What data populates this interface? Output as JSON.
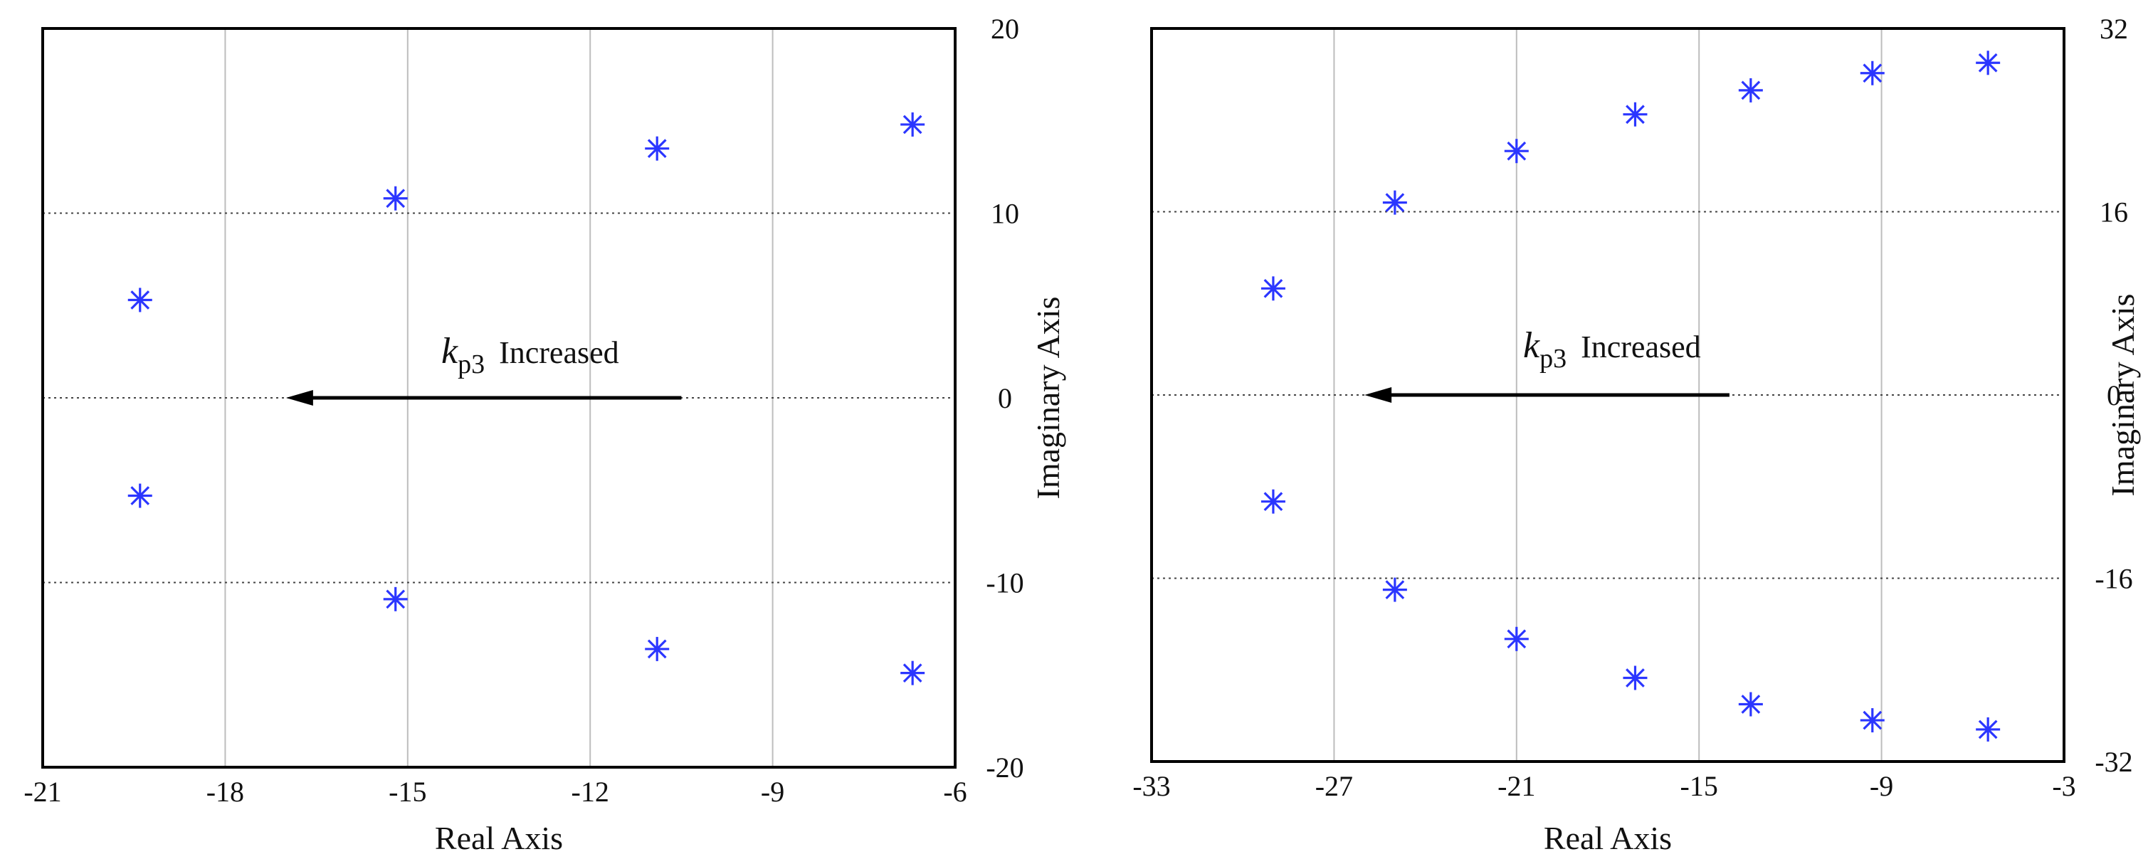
{
  "chart_data": [
    {
      "type": "scatter",
      "xlabel": "Real Axis",
      "ylabel": "Imaginary Axis",
      "xlim": [
        -21,
        -6
      ],
      "ylim": [
        -20,
        20
      ],
      "xticks": [
        "-21",
        "-18",
        "-15",
        "-12",
        "-9",
        "-6"
      ],
      "yticks": [
        "20",
        "10",
        "0",
        "-10",
        "-20"
      ],
      "grid": true,
      "annotation": {
        "symbol": "k",
        "subscript": "p3",
        "text": "Increased",
        "arrow_from": [
          -10.5,
          0
        ],
        "arrow_to": [
          -17,
          0
        ]
      },
      "points": [
        {
          "x": -19.4,
          "y": 5.3
        },
        {
          "x": -19.4,
          "y": -5.3
        },
        {
          "x": -15.2,
          "y": 10.8
        },
        {
          "x": -15.2,
          "y": -10.9
        },
        {
          "x": -10.9,
          "y": 13.5
        },
        {
          "x": -10.9,
          "y": -13.6
        },
        {
          "x": -6.7,
          "y": 14.8
        },
        {
          "x": -6.7,
          "y": -14.9
        }
      ]
    },
    {
      "type": "scatter",
      "xlabel": "Real Axis",
      "ylabel": "Imaginary Axis",
      "xlim": [
        -33,
        -3
      ],
      "ylim": [
        -32,
        32
      ],
      "xticks": [
        "-33",
        "-27",
        "-21",
        "-15",
        "-9",
        "-3"
      ],
      "yticks": [
        "32",
        "16",
        "0",
        "-16",
        "-32"
      ],
      "grid": true,
      "annotation": {
        "symbol": "k",
        "subscript": "p3",
        "text": "Increased",
        "arrow_from": [
          -14,
          0
        ],
        "arrow_to": [
          -26,
          0
        ]
      },
      "points": [
        {
          "x": -29.0,
          "y": 9.3
        },
        {
          "x": -29.0,
          "y": -9.3
        },
        {
          "x": -25.0,
          "y": 16.8
        },
        {
          "x": -25.0,
          "y": -17.0
        },
        {
          "x": -21.0,
          "y": 21.3
        },
        {
          "x": -21.0,
          "y": -21.3
        },
        {
          "x": -17.1,
          "y": 24.5
        },
        {
          "x": -17.1,
          "y": -24.7
        },
        {
          "x": -13.3,
          "y": 26.6
        },
        {
          "x": -13.3,
          "y": -27.0
        },
        {
          "x": -9.3,
          "y": 28.1
        },
        {
          "x": -9.3,
          "y": -28.4
        },
        {
          "x": -5.5,
          "y": 29.0
        },
        {
          "x": -5.5,
          "y": -29.2
        }
      ]
    }
  ]
}
